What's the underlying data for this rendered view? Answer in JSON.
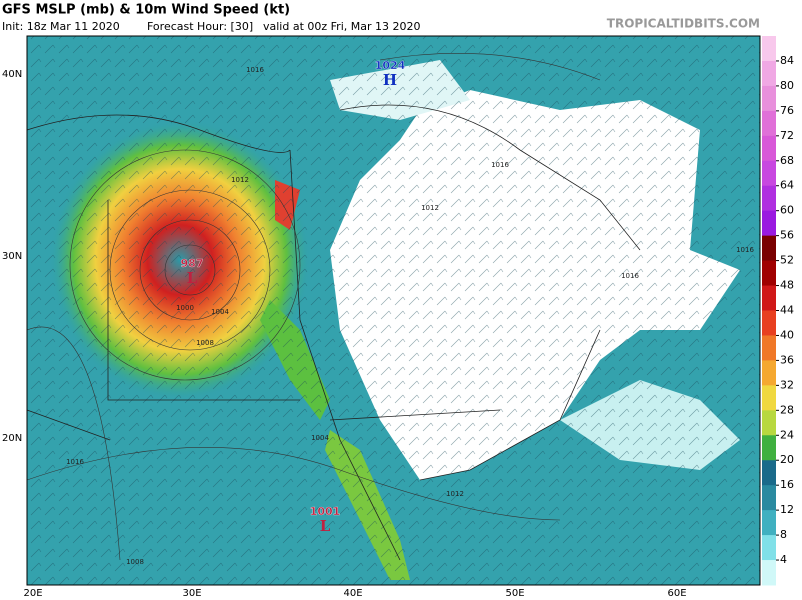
{
  "header": {
    "title": "GFS MSLP (mb) & 10m Wind Speed (kt)",
    "init": "Init: 18z Mar 11 2020",
    "forecast_hour": "Forecast Hour: [30]",
    "valid": "valid at 00z Fri, Mar 13 2020",
    "site": "TROPICALTIDBITS.COM"
  },
  "colorbar": {
    "labels": [
      84,
      80,
      76,
      72,
      68,
      64,
      60,
      56,
      52,
      48,
      44,
      40,
      36,
      32,
      28,
      24,
      20,
      16,
      12,
      8,
      4
    ]
  },
  "axes": {
    "lat_labels": [
      "40N",
      "30N",
      "20N"
    ],
    "lon_labels": [
      "20E",
      "30E",
      "40E",
      "50E",
      "60E"
    ]
  },
  "pressure_centers": [
    {
      "value": "1024",
      "symbol": "H"
    },
    {
      "value": "987",
      "symbol": "L"
    },
    {
      "value": "1001",
      "symbol": "L"
    }
  ],
  "isobar_labels": [
    "1016",
    "1012",
    "1016",
    "1016",
    "1012",
    "1016",
    "1008",
    "1004",
    "1004",
    "1016",
    "1012",
    "1008",
    "1000"
  ]
}
